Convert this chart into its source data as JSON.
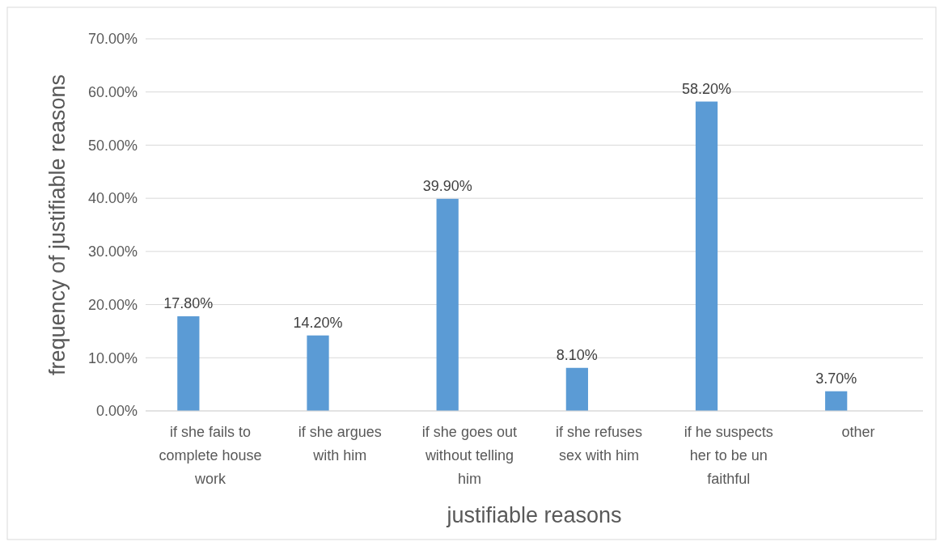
{
  "chart_data": {
    "type": "bar",
    "xlabel": "justifiable reasons",
    "ylabel": "frequency of justifiable reasons",
    "categories": [
      "if she fails to complete house work",
      "if she argues with him",
      "if she goes out without telling him",
      "if she refuses sex with him",
      "if he  suspects her to be un faithful",
      "other"
    ],
    "values": [
      17.8,
      14.2,
      39.9,
      8.1,
      58.2,
      3.7
    ],
    "value_labels": [
      "17.80%",
      "14.20%",
      "39.90%",
      "8.10%",
      "58.20%",
      "3.70%"
    ],
    "color": "#5b9bd5",
    "ylim": [
      0,
      70
    ],
    "yticks": [
      {
        "value": 0,
        "label": "0.00%"
      },
      {
        "value": 10,
        "label": "10.00%"
      },
      {
        "value": 20,
        "label": "20.00%"
      },
      {
        "value": 30,
        "label": "30.00%"
      },
      {
        "value": 40,
        "label": "40.00%"
      },
      {
        "value": 50,
        "label": "50.00%"
      },
      {
        "value": 60,
        "label": "60.00%"
      },
      {
        "value": 70,
        "label": "70.00%"
      }
    ],
    "grid": "y"
  }
}
